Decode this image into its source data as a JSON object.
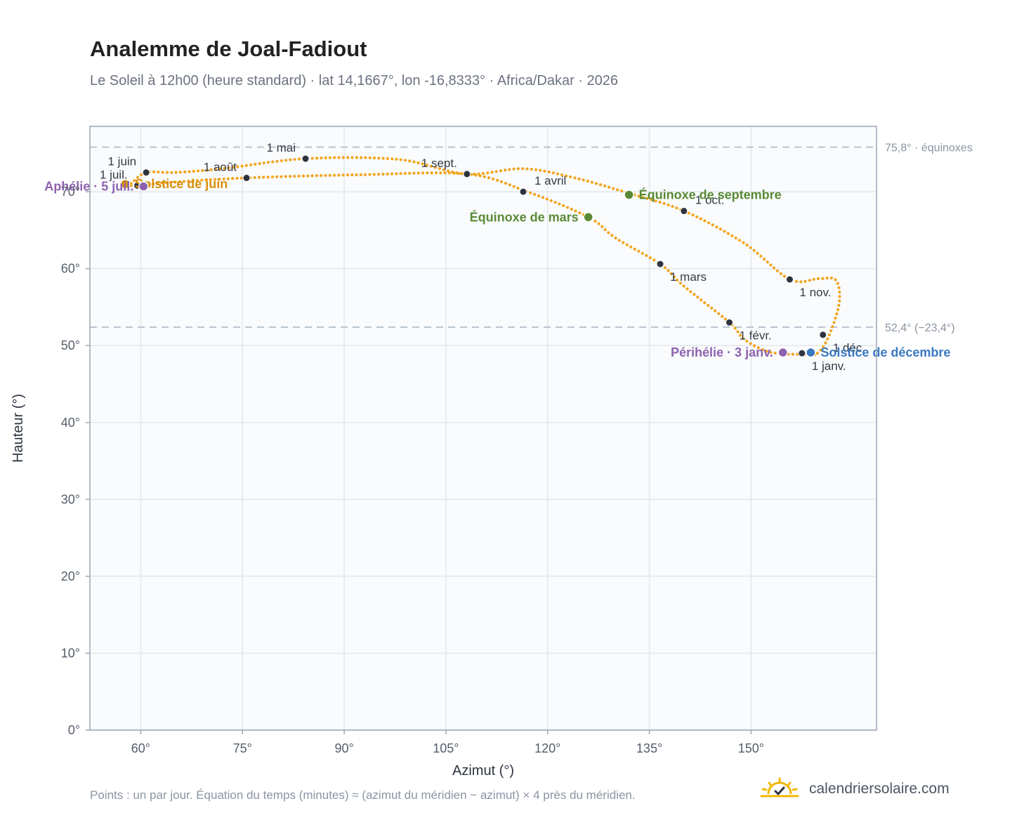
{
  "header": {
    "title": "Analemme de Joal-Fadiout",
    "subtitle": "Le Soleil à 12h00 (heure standard) · lat 14,1667°, lon -16,8333° · Africa/Dakar · 2026"
  },
  "footer": {
    "note": "Points : un par jour. Équation du temps (minutes) ≈ (azimut du méridien − azimut) × 4 près du méridien.",
    "brand": "calendriersolaire.com",
    "brand_icon": "sun-check-icon"
  },
  "colors": {
    "curve": "#f2a622",
    "month_marker": "#2d3440",
    "equinox": "#5a8a35",
    "solstice_june": "#d88f0c",
    "solstice_december": "#3a78c0",
    "perihelion": "#8e62b0",
    "plot_bg": "#f9fbfd",
    "grid": "#e3e7ec",
    "ref_line": "#b6c0cb"
  },
  "chart_data": {
    "type": "scatter",
    "xlabel": "Azimut (°)",
    "ylabel": "Hauteur (°)",
    "xlim": [
      52.5,
      168.5
    ],
    "ylim": [
      0,
      78.5
    ],
    "x_ticks": [
      {
        "value": 60,
        "label": "60°"
      },
      {
        "value": 75,
        "label": "75°"
      },
      {
        "value": 90,
        "label": "90°"
      },
      {
        "value": 105,
        "label": "105°"
      },
      {
        "value": 120,
        "label": "120°"
      },
      {
        "value": 135,
        "label": "135°"
      },
      {
        "value": 150,
        "label": "150°"
      }
    ],
    "y_ticks": [
      {
        "value": 0,
        "label": "0°"
      },
      {
        "value": 10,
        "label": "10°"
      },
      {
        "value": 20,
        "label": "20°"
      },
      {
        "value": 30,
        "label": "30°"
      },
      {
        "value": 40,
        "label": "40°"
      },
      {
        "value": 50,
        "label": "50°"
      },
      {
        "value": 60,
        "label": "60°"
      },
      {
        "value": 70,
        "label": "70°"
      }
    ],
    "grid": true,
    "reference_lines": [
      {
        "y": 75.8,
        "label": "75,8° · équinoxes"
      },
      {
        "y": 52.4,
        "label": "52,4° (−23,4°)"
      }
    ],
    "analemma_path": [
      [
        159.8,
        49.0
      ],
      [
        161.5,
        51.3
      ],
      [
        163.0,
        55.6
      ],
      [
        162.5,
        58.5
      ],
      [
        160.0,
        58.7
      ],
      [
        155.7,
        58.6
      ],
      [
        149.0,
        63.3
      ],
      [
        140.1,
        67.5
      ],
      [
        132.0,
        69.8
      ],
      [
        124.0,
        71.8
      ],
      [
        116.4,
        73.0
      ],
      [
        107.9,
        72.3
      ],
      [
        98.0,
        74.2
      ],
      [
        84.3,
        74.3
      ],
      [
        72.0,
        73.0
      ],
      [
        65.0,
        72.5
      ],
      [
        60.8,
        72.5
      ],
      [
        58.4,
        71.0
      ],
      [
        57.0,
        70.9
      ],
      [
        59.5,
        70.8
      ],
      [
        64.0,
        71.2
      ],
      [
        75.6,
        71.8
      ],
      [
        92.0,
        72.2
      ],
      [
        108.1,
        72.3
      ],
      [
        117.0,
        70.0
      ],
      [
        126.0,
        66.7
      ],
      [
        130.0,
        64.0
      ],
      [
        136.6,
        60.6
      ],
      [
        140.0,
        57.8
      ],
      [
        146.8,
        53.0
      ],
      [
        149.0,
        50.8
      ],
      [
        152.2,
        49.3
      ],
      [
        155.0,
        48.9
      ],
      [
        158.0,
        48.9
      ]
    ],
    "month_markers": [
      {
        "label": "1 janv.",
        "azimuth": 157.5,
        "altitude": 49.0,
        "label_pos": "below-right"
      },
      {
        "label": "1 févr.",
        "azimuth": 146.8,
        "altitude": 53.0,
        "label_pos": "below-right"
      },
      {
        "label": "1 mars",
        "azimuth": 136.6,
        "altitude": 60.6,
        "label_pos": "below-right"
      },
      {
        "label": "1 avril",
        "azimuth": 116.4,
        "altitude": 70.0,
        "label_pos": "above-right"
      },
      {
        "label": "1 mai",
        "azimuth": 84.3,
        "altitude": 74.3,
        "label_pos": "above-left"
      },
      {
        "label": "1 juin",
        "azimuth": 60.8,
        "altitude": 72.5,
        "label_pos": "above-left"
      },
      {
        "label": "1 juil.",
        "azimuth": 59.5,
        "altitude": 70.8,
        "label_pos": "above-left"
      },
      {
        "label": "1 août",
        "azimuth": 75.6,
        "altitude": 71.8,
        "label_pos": "above-left"
      },
      {
        "label": "1 sept.",
        "azimuth": 108.1,
        "altitude": 72.3,
        "label_pos": "above-left"
      },
      {
        "label": "1 oct.",
        "azimuth": 140.1,
        "altitude": 67.5,
        "label_pos": "above-right"
      },
      {
        "label": "1 nov.",
        "azimuth": 155.7,
        "altitude": 58.6,
        "label_pos": "below-right"
      },
      {
        "label": "1 déc.",
        "azimuth": 160.6,
        "altitude": 51.4,
        "label_pos": "below-right"
      }
    ],
    "events": [
      {
        "label": "Équinoxe de mars",
        "azimuth": 126.0,
        "altitude": 66.7,
        "color_key": "equinox",
        "anchor": "left"
      },
      {
        "label": "Équinoxe de septembre",
        "azimuth": 132.0,
        "altitude": 69.6,
        "color_key": "equinox",
        "anchor": "right"
      },
      {
        "label": "Solstice de juin",
        "azimuth": 57.7,
        "altitude": 71.0,
        "color_key": "solstice_june",
        "anchor": "right"
      },
      {
        "label": "Solstice de décembre",
        "azimuth": 158.8,
        "altitude": 49.1,
        "color_key": "solstice_december",
        "anchor": "right"
      },
      {
        "label": "Aphélie · 5 juil.",
        "azimuth": 60.4,
        "altitude": 70.7,
        "color_key": "perihelion",
        "anchor": "left"
      },
      {
        "label": "Périhélie · 3 janv.",
        "azimuth": 154.7,
        "altitude": 49.1,
        "color_key": "perihelion",
        "anchor": "left"
      }
    ]
  }
}
